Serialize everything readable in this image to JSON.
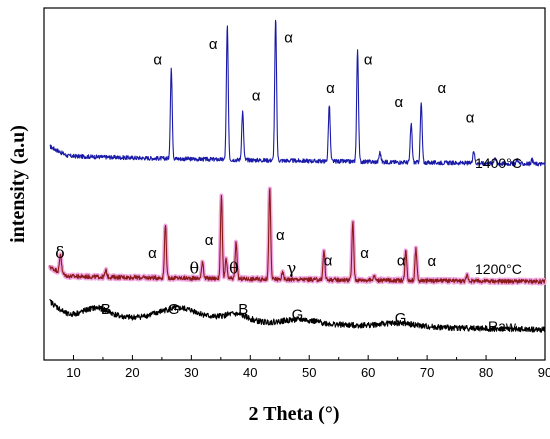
{
  "chart_data": {
    "type": "line",
    "xlabel": "2 Theta (°)",
    "ylabel": "intensity (a.u)",
    "xlim": [
      5,
      90
    ],
    "xticks": [
      10,
      20,
      30,
      40,
      50,
      60,
      70,
      80,
      90
    ],
    "yticks": "none",
    "grid": false,
    "series": [
      {
        "name": "1400°C",
        "color": "#1a1aa8",
        "baseline_start": 160,
        "baseline_end": 100,
        "peaks": [
          {
            "x": 26.6,
            "h": 560
          },
          {
            "x": 36.1,
            "h": 830
          },
          {
            "x": 38.7,
            "h": 300
          },
          {
            "x": 44.3,
            "h": 880
          },
          {
            "x": 53.4,
            "h": 350
          },
          {
            "x": 58.2,
            "h": 690
          },
          {
            "x": 62.0,
            "h": 60
          },
          {
            "x": 67.3,
            "h": 240
          },
          {
            "x": 69.0,
            "h": 370
          },
          {
            "x": 77.9,
            "h": 80
          },
          {
            "x": 81.5,
            "h": 40
          },
          {
            "x": 85.3,
            "h": 30
          },
          {
            "x": 87.8,
            "h": 25
          }
        ]
      },
      {
        "name": "1200°C",
        "color": "#8b1a1a",
        "halo_color": "#f0a6e0",
        "baseline_start": 130,
        "baseline_end": 90,
        "peaks": [
          {
            "x": 7.8,
            "h": 120
          },
          {
            "x": 15.5,
            "h": 40
          },
          {
            "x": 25.6,
            "h": 340
          },
          {
            "x": 31.9,
            "h": 110
          },
          {
            "x": 35.1,
            "h": 510
          },
          {
            "x": 35.9,
            "h": 120
          },
          {
            "x": 37.6,
            "h": 230
          },
          {
            "x": 43.3,
            "h": 560
          },
          {
            "x": 45.5,
            "h": 40
          },
          {
            "x": 52.5,
            "h": 180
          },
          {
            "x": 57.4,
            "h": 360
          },
          {
            "x": 61.0,
            "h": 30
          },
          {
            "x": 66.4,
            "h": 190
          },
          {
            "x": 68.1,
            "h": 200
          },
          {
            "x": 76.8,
            "h": 35
          }
        ]
      },
      {
        "name": "Raw",
        "color": "#000000",
        "baseline_start": 140,
        "baseline_end": 60,
        "humps": [
          {
            "x": 14.0,
            "h": 40,
            "w": 3.0
          },
          {
            "x": 28.0,
            "h": 55,
            "w": 5.0
          },
          {
            "x": 37.5,
            "h": 35,
            "w": 3.0
          },
          {
            "x": 48.5,
            "h": 20,
            "w": 4.0
          },
          {
            "x": 65.0,
            "h": 15,
            "w": 4.0
          }
        ]
      }
    ],
    "annotations": [
      {
        "text": "α",
        "x": 24.3,
        "series": "1400°C",
        "level": 0.78
      },
      {
        "text": "α",
        "x": 33.7,
        "series": "1400°C",
        "level": 0.9
      },
      {
        "text": "α",
        "x": 41.0,
        "series": "1400°C",
        "level": 0.5
      },
      {
        "text": "α",
        "x": 46.5,
        "series": "1400°C",
        "level": 0.95
      },
      {
        "text": "α",
        "x": 53.6,
        "series": "1400°C",
        "level": 0.56
      },
      {
        "text": "α",
        "x": 60.0,
        "series": "1400°C",
        "level": 0.78
      },
      {
        "text": "α",
        "x": 65.2,
        "series": "1400°C",
        "level": 0.45
      },
      {
        "text": "α",
        "x": 72.5,
        "series": "1400°C",
        "level": 0.56
      },
      {
        "text": "α",
        "x": 77.3,
        "series": "1400°C",
        "level": 0.33
      },
      {
        "text": "δ",
        "x": 7.7,
        "series": "1200°C",
        "level": 0.43
      },
      {
        "text": "α",
        "x": 23.4,
        "series": "1200°C",
        "level": 0.43
      },
      {
        "text": "θ",
        "x": 30.5,
        "series": "1200°C",
        "level": 0.22
      },
      {
        "text": "α",
        "x": 33.0,
        "series": "1200°C",
        "level": 0.6
      },
      {
        "text": "θ",
        "x": 37.2,
        "series": "1200°C",
        "level": 0.22
      },
      {
        "text": "α",
        "x": 45.1,
        "series": "1200°C",
        "level": 0.67
      },
      {
        "text": "γ",
        "x": 47.0,
        "series": "1200°C",
        "level": 0.22
      },
      {
        "text": "α",
        "x": 53.2,
        "series": "1200°C",
        "level": 0.33
      },
      {
        "text": "α",
        "x": 59.4,
        "series": "1200°C",
        "level": 0.43
      },
      {
        "text": "α",
        "x": 65.6,
        "series": "1200°C",
        "level": 0.33
      },
      {
        "text": "α",
        "x": 70.8,
        "series": "1200°C",
        "level": 0.32
      },
      {
        "text": "B",
        "x": 15.5,
        "series": "Raw",
        "level": 0.6
      },
      {
        "text": "G",
        "x": 27.0,
        "series": "Raw",
        "level": 0.6
      },
      {
        "text": "B",
        "x": 38.8,
        "series": "Raw",
        "level": 0.6
      },
      {
        "text": "G",
        "x": 48.0,
        "series": "Raw",
        "level": 0.45
      },
      {
        "text": "G",
        "x": 65.5,
        "series": "Raw",
        "level": 0.35
      }
    ]
  }
}
